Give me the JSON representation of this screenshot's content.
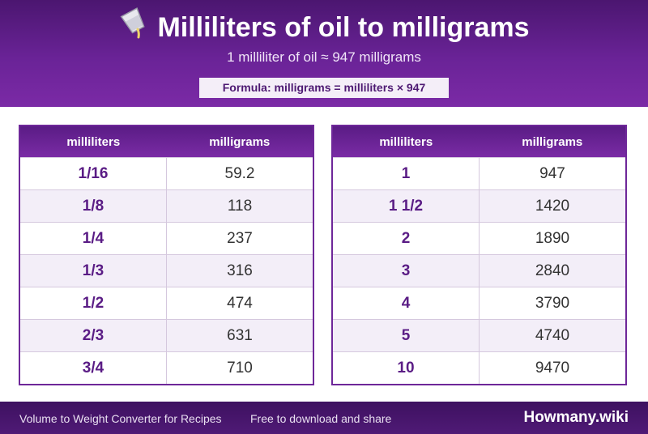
{
  "header": {
    "title": "Milliliters of oil to milligrams",
    "subtitle": "1 milliliter of oil ≈ 947 milligrams",
    "formula": "Formula: milligrams = milliliters × 947",
    "icon": "pouring-cup-icon"
  },
  "tables": [
    {
      "headers": [
        "milliliters",
        "milligrams"
      ],
      "rows": [
        [
          "1/16",
          "59.2"
        ],
        [
          "1/8",
          "118"
        ],
        [
          "1/4",
          "237"
        ],
        [
          "1/3",
          "316"
        ],
        [
          "1/2",
          "474"
        ],
        [
          "2/3",
          "631"
        ],
        [
          "3/4",
          "710"
        ]
      ]
    },
    {
      "headers": [
        "milliliters",
        "milligrams"
      ],
      "rows": [
        [
          "1",
          "947"
        ],
        [
          "1 1/2",
          "1420"
        ],
        [
          "2",
          "1890"
        ],
        [
          "3",
          "2840"
        ],
        [
          "4",
          "3790"
        ],
        [
          "5",
          "4740"
        ],
        [
          "10",
          "9470"
        ]
      ]
    }
  ],
  "footer": {
    "left": "Volume to Weight Converter for Recipes",
    "middle": "Free to download and share",
    "brand": "Howmany.wiki"
  },
  "colors": {
    "accent": "#6e2799",
    "header_bg": "#5a1c85",
    "alt_row": "#f3eef8"
  }
}
